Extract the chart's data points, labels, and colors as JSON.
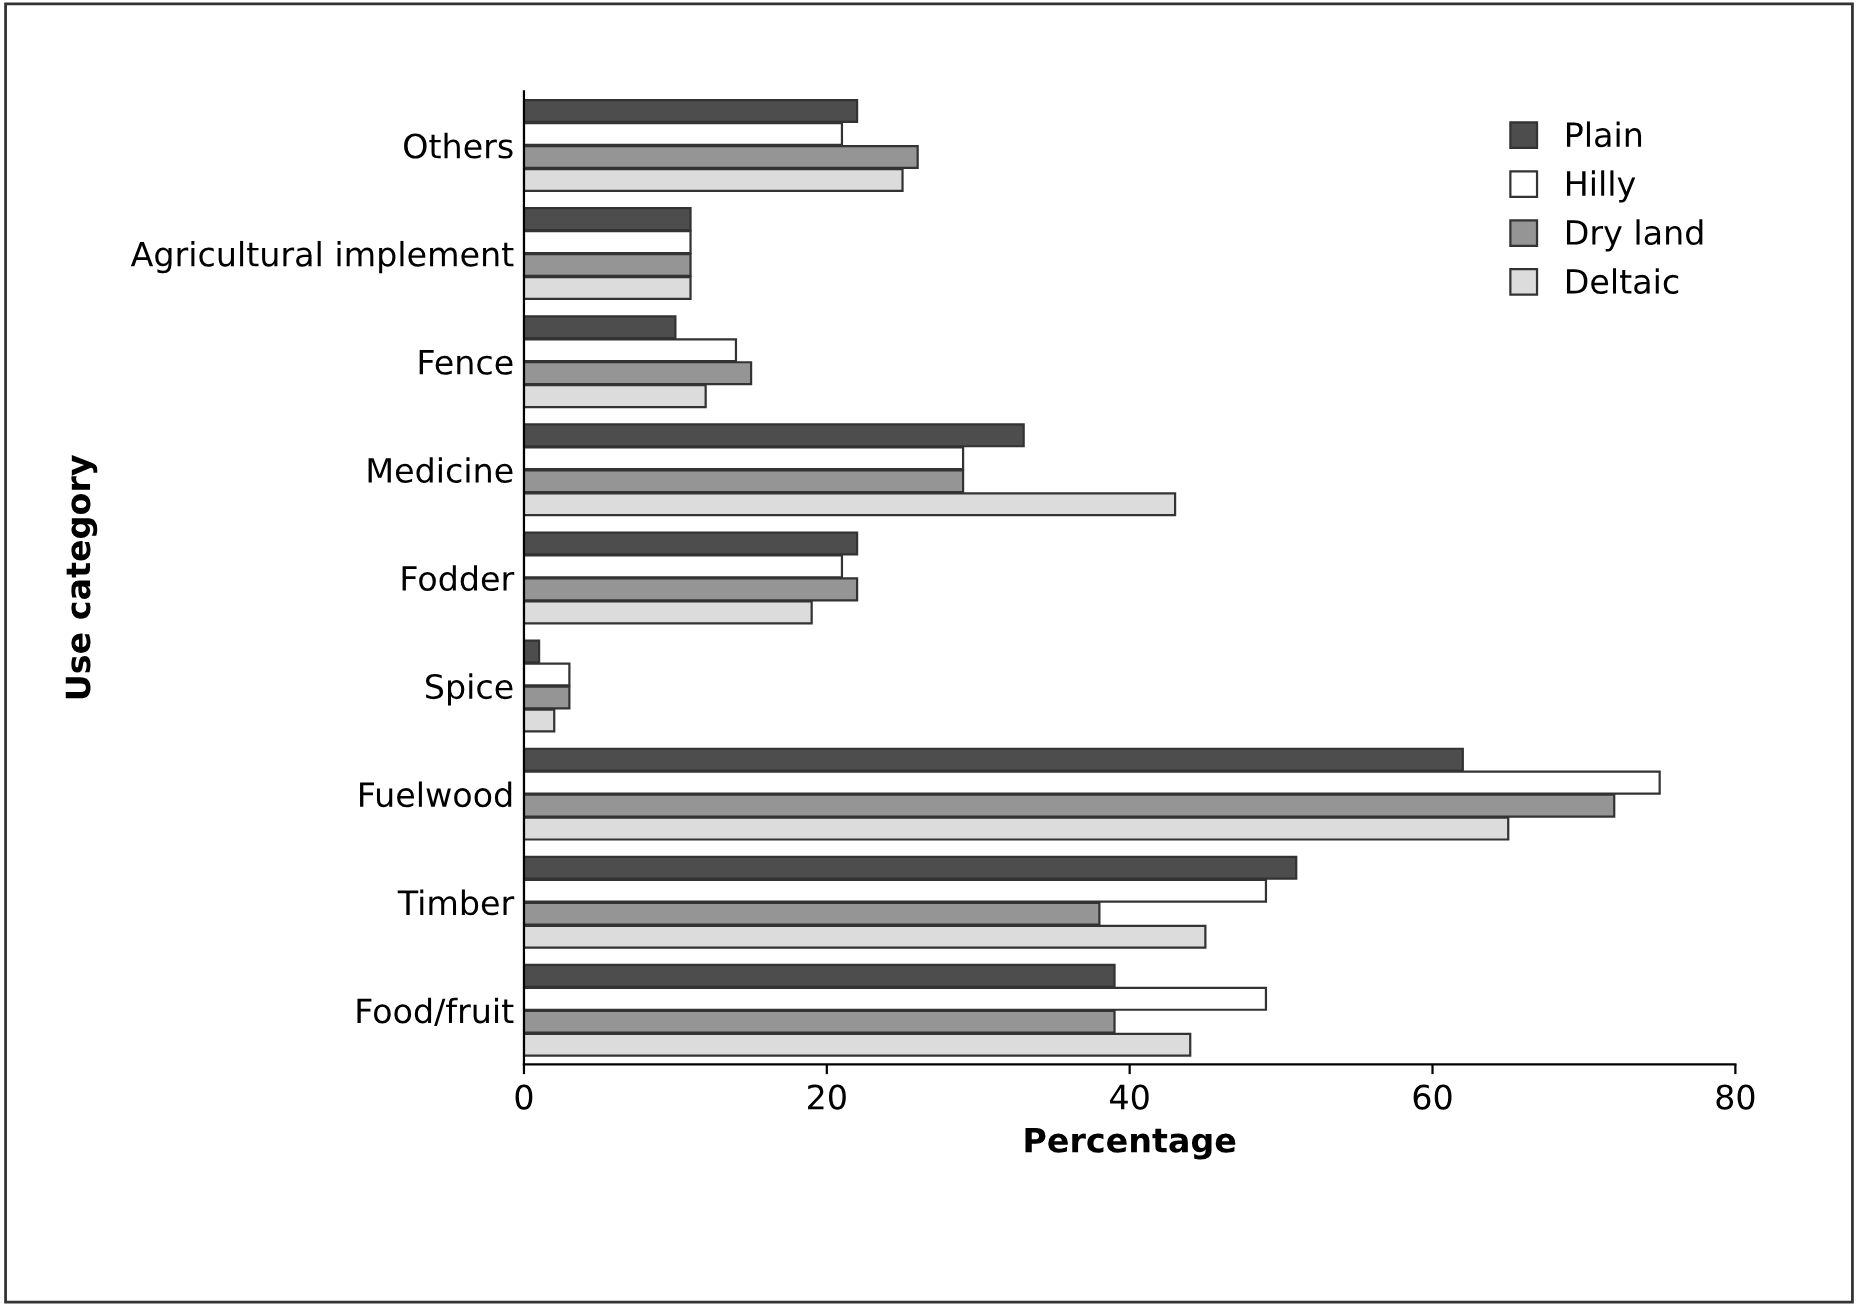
{
  "chart_data": {
    "type": "bar",
    "orientation": "horizontal",
    "xlabel": "Percentage",
    "ylabel": "Use category",
    "categories": [
      "Others",
      "Agricultural implement",
      "Fence",
      "Medicine",
      "Fodder",
      "Spice",
      "Fuelwood",
      "Timber",
      "Food/fruit"
    ],
    "series": [
      {
        "name": "Plain",
        "color": "#4d4d4d",
        "values": [
          22,
          11,
          10,
          33,
          22,
          1,
          62,
          51,
          39
        ]
      },
      {
        "name": "Hilly",
        "color": "#ffffff",
        "values": [
          21,
          11,
          14,
          29,
          21,
          3,
          75,
          49,
          49
        ]
      },
      {
        "name": "Dry land",
        "color": "#959595",
        "values": [
          26,
          11,
          15,
          29,
          22,
          3,
          72,
          38,
          39
        ]
      },
      {
        "name": "Deltaic",
        "color": "#dcdcdc",
        "values": [
          25,
          11,
          12,
          43,
          19,
          2,
          65,
          45,
          44
        ]
      }
    ],
    "xlim": [
      0,
      80
    ],
    "xticks": [
      0,
      20,
      40,
      60,
      80
    ],
    "grid": false,
    "legend": "top right"
  }
}
